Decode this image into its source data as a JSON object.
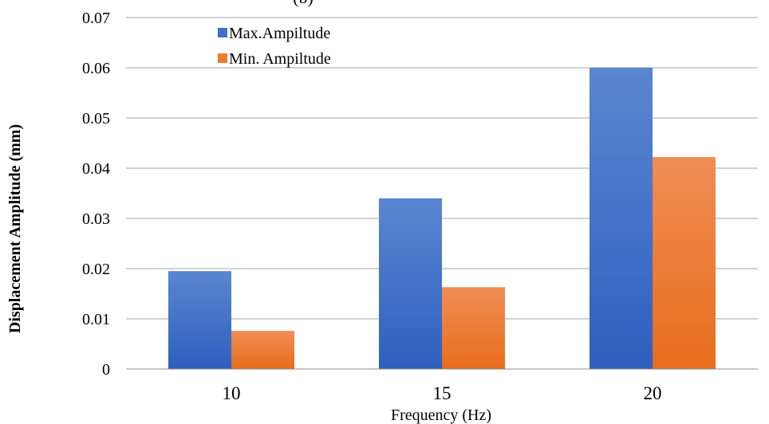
{
  "chart_data": {
    "type": "bar",
    "title": "(b)",
    "xlabel": "Frequency (Hz)",
    "ylabel": "Displacement Amplitude (mm)",
    "categories": [
      "10",
      "15",
      "20"
    ],
    "series": [
      {
        "name": "Max.Ampiltude",
        "values": [
          0.0195,
          0.034,
          0.06
        ],
        "color": "#3f6fc9"
      },
      {
        "name": "Min. Ampiltude",
        "values": [
          0.0076,
          0.0163,
          0.0422
        ],
        "color": "#f07b2c"
      }
    ],
    "ylim": [
      0,
      0.07
    ],
    "yticks": [
      "0",
      "0.01",
      "0.02",
      "0.03",
      "0.04",
      "0.05",
      "0.06",
      "0.07"
    ],
    "grid": true,
    "legend_position": "top-left inside plot"
  }
}
